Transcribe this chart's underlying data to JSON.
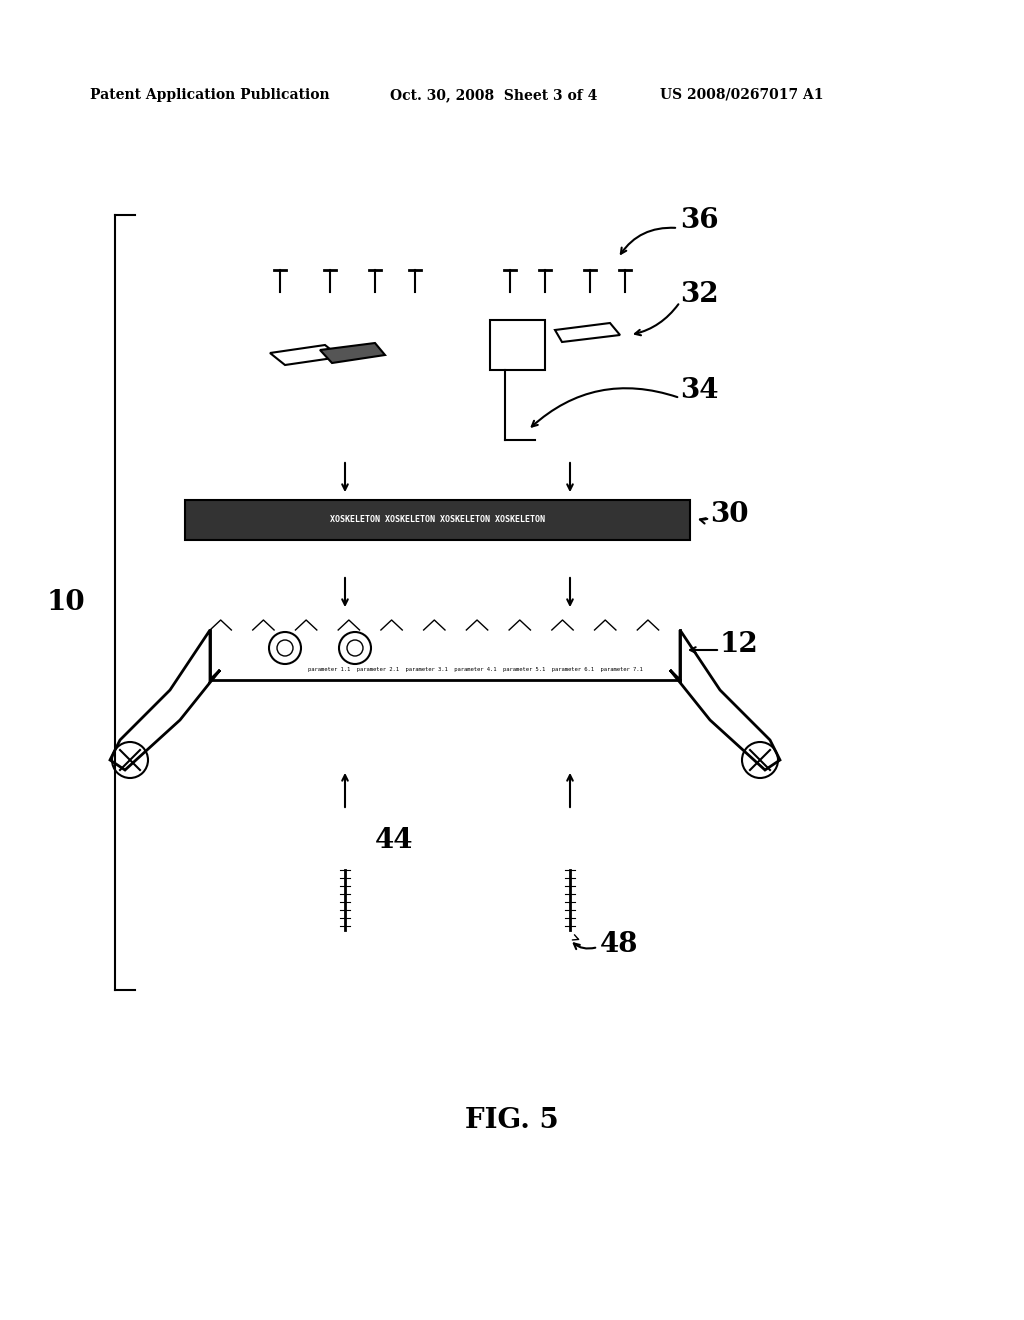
{
  "bg_color": "#ffffff",
  "header_left": "Patent Application Publication",
  "header_mid": "Oct. 30, 2008  Sheet 3 of 4",
  "header_right": "US 2008/0267017 A1",
  "fig_label": "FIG. 5",
  "label_10": "10",
  "label_12": "12",
  "label_30": "30",
  "label_32": "32",
  "label_34": "34",
  "label_36": "36",
  "label_44": "44",
  "label_48": "48"
}
